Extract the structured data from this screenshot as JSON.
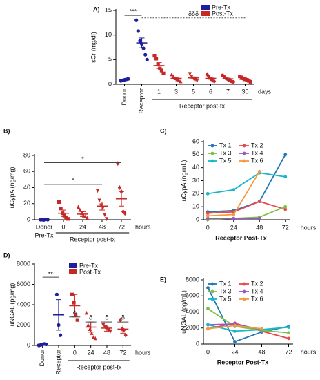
{
  "chart_data": [
    {
      "type": "dot",
      "label": "A)",
      "ylabel": "sCr (mg/dl)",
      "ylim": [
        0,
        15
      ],
      "yticks": [
        0,
        5,
        10,
        15
      ],
      "categories": [
        "Donor",
        "Receptor",
        "1",
        "3",
        "5",
        "6",
        "7",
        "30"
      ],
      "colors": [
        "#1f1f9c",
        "#1f1f9c",
        "#c62828",
        "#c62828",
        "#c62828",
        "#c62828",
        "#c62828",
        "#c62828"
      ],
      "markers": [
        "circle",
        "circle",
        "square",
        "triangle",
        "triangle-down",
        "diamond",
        "circle",
        "square"
      ],
      "points": [
        [
          0.7,
          0.8,
          0.9,
          1.0,
          1.1
        ],
        [
          13.0,
          10.8,
          8.8,
          8.2,
          7.3,
          6.0,
          5.0
        ],
        [
          5.8,
          5.2,
          4.0,
          3.2,
          2.8,
          2.2
        ],
        [
          2.0,
          1.6,
          1.2,
          1.0,
          0.8,
          0.6
        ],
        [
          2.1,
          1.6,
          1.2,
          1.0,
          0.7
        ],
        [
          2.0,
          1.5,
          1.1,
          0.8,
          0.6
        ],
        [
          1.8,
          1.5,
          1.2,
          1.0,
          0.8,
          0.6,
          0.5
        ],
        [
          1.6,
          1.4,
          1.2,
          1.0,
          0.9,
          0.7,
          0.5
        ]
      ],
      "means": [
        0.9,
        8.4,
        3.8,
        1.2,
        1.3,
        1.2,
        1.1,
        1.0
      ],
      "errors": [
        0.1,
        1.0,
        0.6,
        0.2,
        0.2,
        0.2,
        0.15,
        0.15
      ],
      "group_label": "Receptor post-tx",
      "unit_label": "days",
      "legend": [
        {
          "name": "Pre-Tx",
          "color": "#1f1f9c"
        },
        {
          "name": "Post-Tx",
          "color": "#c62828"
        }
      ],
      "annotations": [
        "***",
        "δδδ"
      ]
    },
    {
      "type": "dot",
      "label": "B)",
      "ylabel": "uCypA (ng/mg)",
      "ylim": [
        0,
        80
      ],
      "yticks": [
        0,
        20,
        40,
        60,
        80
      ],
      "categories": [
        "Donor",
        "0",
        "24",
        "48",
        "72"
      ],
      "sublabel": "Pre-Tx",
      "colors": [
        "#1f1f9c",
        "#c62828",
        "#c62828",
        "#c62828",
        "#c62828"
      ],
      "markers": [
        "circle",
        "square",
        "triangle",
        "triangle-down",
        "diamond"
      ],
      "points": [
        [
          0,
          0,
          0,
          0.5,
          0
        ],
        [
          22,
          14,
          8,
          5,
          3,
          1
        ],
        [
          16,
          12,
          8,
          5,
          4,
          2
        ],
        [
          36,
          24,
          18,
          15,
          6,
          1
        ],
        [
          70,
          40,
          35,
          10,
          8
        ]
      ],
      "means": [
        0,
        8,
        7,
        17,
        26
      ],
      "errors": [
        0.2,
        4,
        3,
        5,
        9
      ],
      "group_label": "Receptor post-tx",
      "unit_label": "hours",
      "annotations": [
        "*",
        "*"
      ]
    },
    {
      "type": "line",
      "label": "C)",
      "ylabel": "uCypA (ng/mL)",
      "xlabel": "Receptor Post-Tx",
      "unit_label": "hours",
      "x": [
        0,
        24,
        48,
        72
      ],
      "xlim": [
        -4,
        76
      ],
      "xticks": [
        0,
        24,
        48,
        72
      ],
      "ylim": [
        0,
        60
      ],
      "yticks": [
        0,
        10,
        20,
        30,
        40,
        50,
        60
      ],
      "series": [
        {
          "name": "Tx 1",
          "color": "#1f77b4",
          "values": [
            6,
            7,
            14,
            50
          ]
        },
        {
          "name": "Tx 2",
          "color": "#e8474c",
          "values": [
            5,
            6,
            14,
            8
          ]
        },
        {
          "name": "Tx 3",
          "color": "#7cc144",
          "values": [
            0,
            1,
            2,
            10
          ]
        },
        {
          "name": "Tx 4",
          "color": "#9a57c6",
          "values": [
            1,
            1,
            1,
            null
          ]
        },
        {
          "name": "Tx 5",
          "color": "#17b6c9",
          "values": [
            20,
            23,
            36,
            33
          ]
        },
        {
          "name": "Tx 6",
          "color": "#f59a3c",
          "values": [
            3,
            4,
            37,
            null
          ]
        }
      ]
    },
    {
      "type": "dot",
      "label": "D)",
      "ylabel": "uNGAL (pg/mg)",
      "ylim": [
        0,
        8000
      ],
      "yticks": [
        0,
        2000,
        4000,
        6000,
        8000
      ],
      "categories": [
        "Donor",
        "Receptor",
        "0",
        "24",
        "48",
        "72"
      ],
      "colors": [
        "#1f1f9c",
        "#1f1f9c",
        "#c62828",
        "#c62828",
        "#c62828",
        "#c62828"
      ],
      "markers": [
        "circle",
        "circle",
        "square",
        "triangle",
        "triangle-down",
        "diamond"
      ],
      "points": [
        [
          0,
          50,
          100,
          150,
          100
        ],
        [
          5000,
          2000,
          1000
        ],
        [
          5000,
          4200,
          3000,
          2500
        ],
        [
          3200,
          2000,
          1600,
          1200,
          800,
          700
        ],
        [
          2000,
          1800,
          1700,
          1500,
          1400
        ],
        [
          2500,
          1600,
          1500,
          1000
        ]
      ],
      "means": [
        100,
        3000,
        3900,
        1800,
        1700,
        1600
      ],
      "errors": [
        50,
        1500,
        1100,
        500,
        300,
        400
      ],
      "group_label": "Receptor post-tx",
      "unit_label": "hours",
      "legend": [
        {
          "name": "Pre-Tx",
          "color": "#1f1f9c"
        },
        {
          "name": "Post-Tx",
          "color": "#c62828"
        }
      ],
      "annotations": [
        "**",
        "δ",
        "δ",
        "δ",
        "δ"
      ]
    },
    {
      "type": "line",
      "label": "E)",
      "ylabel": "uNGAL (pg/mL)",
      "xlabel": "Receptor Post-Tx",
      "unit_label": "hours",
      "x": [
        0,
        24,
        48,
        72
      ],
      "xlim": [
        -4,
        76
      ],
      "xticks": [
        0,
        24,
        48,
        72
      ],
      "ylim": [
        0,
        8000
      ],
      "yticks": [
        0,
        2000,
        4000,
        6000,
        8000
      ],
      "series": [
        {
          "name": "Tx 1",
          "color": "#1f77b4",
          "values": [
            7000,
            300,
            1500,
            2200
          ]
        },
        {
          "name": "Tx 2",
          "color": "#e8474c",
          "values": [
            1900,
            2600,
            1600,
            700
          ]
        },
        {
          "name": "Tx 3",
          "color": "#7cc144",
          "values": [
            4400,
            2200,
            1700,
            1400
          ]
        },
        {
          "name": "Tx 4",
          "color": "#9a57c6",
          "values": [
            2400,
            2500,
            1800,
            null
          ]
        },
        {
          "name": "Tx 5",
          "color": "#17b6c9",
          "values": [
            2400,
            1600,
            1800,
            2100
          ]
        },
        {
          "name": "Tx 6",
          "color": "#f59a3c",
          "values": [
            1900,
            2300,
            1900,
            null
          ]
        }
      ]
    }
  ]
}
